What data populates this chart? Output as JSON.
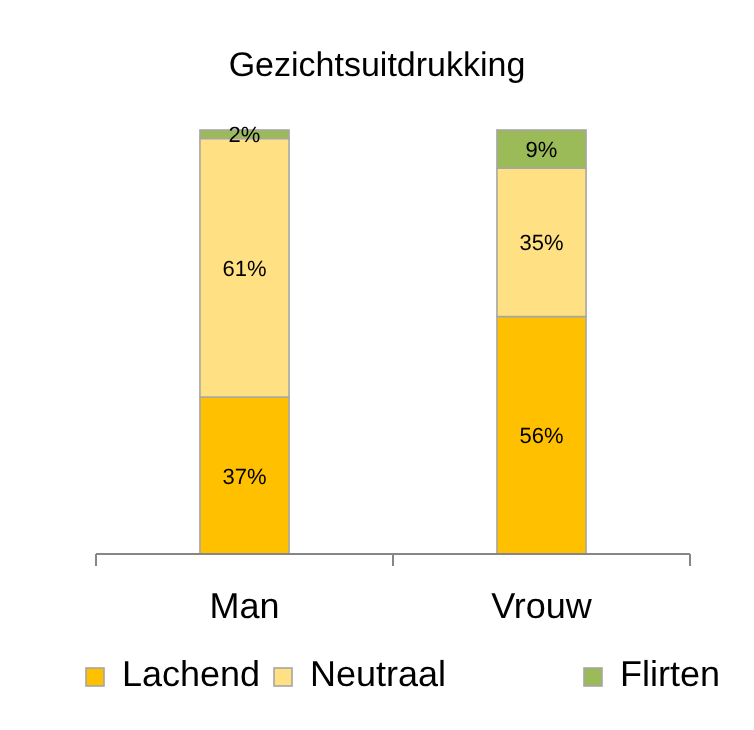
{
  "chart_data": {
    "type": "bar",
    "title": "Gezichtsuitdrukking",
    "categories": [
      "Man",
      "Vrouw"
    ],
    "stacked": true,
    "ylim": [
      0,
      100
    ],
    "tick_labels": "x",
    "legend": "bottom",
    "series": [
      {
        "name": "Lachend",
        "color": "#ffc000",
        "values": [
          37,
          56
        ],
        "value_labels": [
          "37%",
          "56%"
        ]
      },
      {
        "name": "Neutraal",
        "color": "#ffe083",
        "values": [
          61,
          35
        ],
        "value_labels": [
          "61%",
          "35%"
        ]
      },
      {
        "name": "Flirten",
        "color": "#9bbb59",
        "values": [
          2,
          9
        ],
        "value_labels": [
          "2%",
          "9%"
        ]
      }
    ]
  }
}
